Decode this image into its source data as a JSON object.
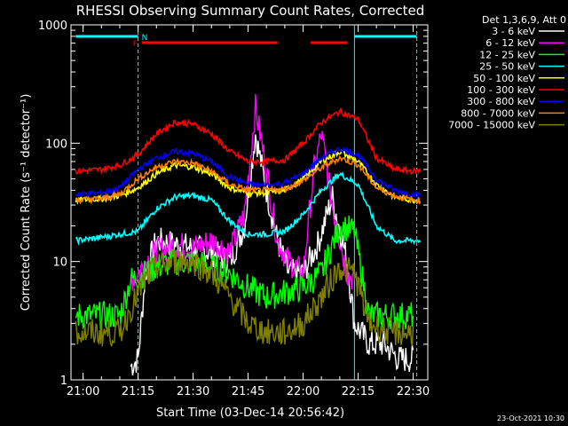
{
  "chart_data": {
    "type": "line",
    "title": "RHESSI Observing Summary Count Rates, Corrected",
    "xlabel": "Start Time (03-Dec-14 20:56:42)",
    "ylabel": "Corrected Count Rate (s⁻¹ detector⁻¹)",
    "yscale": "log",
    "ylim": [
      1,
      1000
    ],
    "xlim": [
      "20:56:42",
      "22:34:00"
    ],
    "x_ticks": [
      "21:00",
      "21:15",
      "21:30",
      "21:45",
      "22:00",
      "22:15",
      "22:30"
    ],
    "y_ticks": [
      "1",
      "10",
      "100",
      "1000"
    ],
    "detector_note": "Det 1,3,6,9, Att 0",
    "timestamp": "23-Oct-2021 10:30",
    "flags": [
      {
        "label": "N",
        "color": "#00ffff",
        "segments": [
          [
            "20:58",
            "21:15"
          ],
          [
            "22:14",
            "22:31"
          ]
        ]
      },
      {
        "label": "F",
        "color": "#ff0000",
        "segments": [
          [
            "21:16",
            "21:53"
          ],
          [
            "22:02",
            "22:12"
          ]
        ]
      }
    ],
    "vlines_cyan": [
      "21:15",
      "22:14",
      "22:31"
    ],
    "series": [
      {
        "name": "3 - 6 keV",
        "color": "#ffffff",
        "x": [
          "21:13",
          "21:15",
          "21:17",
          "21:20",
          "21:25",
          "21:30",
          "21:35",
          "21:40",
          "21:44",
          "21:47",
          "21:50",
          "21:53",
          "21:56",
          "22:00",
          "22:04",
          "22:08",
          "22:12",
          "22:14",
          "22:18",
          "22:22",
          "22:26",
          "22:30"
        ],
        "y": [
          1.3,
          1.5,
          8,
          15,
          14,
          13,
          12,
          10,
          20,
          120,
          40,
          15,
          8,
          8,
          14,
          35,
          10,
          3,
          2,
          2,
          1.5,
          1.5
        ]
      },
      {
        "name": "6 - 12 keV",
        "color": "#ff00ff",
        "x": [
          "21:13",
          "21:15",
          "21:17",
          "21:20",
          "21:25",
          "21:30",
          "21:35",
          "21:40",
          "21:44",
          "21:47",
          "21:50",
          "21:53",
          "21:56",
          "22:00",
          "22:03",
          "22:05",
          "22:08",
          "22:12",
          "22:14"
        ],
        "y": [
          7,
          8,
          10,
          12,
          14,
          13,
          15,
          12,
          25,
          200,
          60,
          15,
          10,
          8,
          60,
          120,
          30,
          8,
          7
        ]
      },
      {
        "name": "12 - 25 keV",
        "color": "#00ff00",
        "x": [
          "20:58",
          "21:05",
          "21:10",
          "21:13",
          "21:17",
          "21:20",
          "21:25",
          "21:30",
          "21:35",
          "21:40",
          "21:45",
          "21:50",
          "21:55",
          "22:00",
          "22:05",
          "22:10",
          "22:14",
          "22:18",
          "22:24",
          "22:30"
        ],
        "y": [
          3.5,
          3.5,
          3.5,
          7,
          8,
          9,
          10,
          10,
          9,
          8,
          6,
          5,
          5.5,
          6,
          8,
          20,
          18,
          3.5,
          3.5,
          3.5
        ]
      },
      {
        "name": "25 - 50 keV",
        "color": "#00ffff",
        "x": [
          "20:58",
          "21:05",
          "21:10",
          "21:15",
          "21:20",
          "21:25",
          "21:30",
          "21:35",
          "21:40",
          "21:45",
          "21:50",
          "21:55",
          "22:00",
          "22:05",
          "22:10",
          "22:15",
          "22:20",
          "22:25",
          "22:30",
          "22:32"
        ],
        "y": [
          15,
          16,
          17,
          18,
          28,
          35,
          36,
          33,
          22,
          17,
          17,
          18,
          25,
          40,
          55,
          45,
          20,
          15,
          15,
          15
        ]
      },
      {
        "name": "50 - 100 keV",
        "color": "#ffff00",
        "x": [
          "20:58",
          "21:05",
          "21:10",
          "21:15",
          "21:20",
          "21:25",
          "21:30",
          "21:35",
          "21:40",
          "21:45",
          "21:50",
          "21:55",
          "22:00",
          "22:05",
          "22:10",
          "22:15",
          "22:20",
          "22:25",
          "22:30",
          "22:32"
        ],
        "y": [
          33,
          34,
          36,
          42,
          55,
          65,
          63,
          55,
          42,
          38,
          38,
          40,
          50,
          70,
          85,
          70,
          45,
          35,
          33,
          33
        ]
      },
      {
        "name": "100 - 300 keV",
        "color": "#ff0000",
        "x": [
          "20:58",
          "21:05",
          "21:10",
          "21:15",
          "21:20",
          "21:25",
          "21:30",
          "21:35",
          "21:40",
          "21:45",
          "21:50",
          "21:55",
          "22:00",
          "22:05",
          "22:10",
          "22:15",
          "22:20",
          "22:25",
          "22:30",
          "22:32"
        ],
        "y": [
          58,
          60,
          65,
          80,
          120,
          150,
          145,
          120,
          85,
          70,
          70,
          72,
          100,
          150,
          185,
          160,
          75,
          60,
          58,
          58
        ]
      },
      {
        "name": "300 - 800 keV",
        "color": "#0000ff",
        "x": [
          "20:58",
          "21:05",
          "21:10",
          "21:15",
          "21:20",
          "21:25",
          "21:30",
          "21:35",
          "21:40",
          "21:45",
          "21:50",
          "21:55",
          "22:00",
          "22:05",
          "22:10",
          "22:15",
          "22:20",
          "22:25",
          "22:30",
          "22:32"
        ],
        "y": [
          37,
          38,
          42,
          60,
          75,
          85,
          82,
          70,
          52,
          45,
          44,
          46,
          55,
          75,
          90,
          80,
          50,
          40,
          37,
          37
        ]
      },
      {
        "name": "800 - 7000 keV",
        "color": "#ff8000",
        "x": [
          "20:58",
          "21:05",
          "21:10",
          "21:15",
          "21:20",
          "21:25",
          "21:30",
          "21:35",
          "21:40",
          "21:45",
          "21:50",
          "21:55",
          "22:00",
          "22:05",
          "22:10",
          "22:15",
          "22:20",
          "22:25",
          "22:30",
          "22:32"
        ],
        "y": [
          33,
          34,
          37,
          50,
          63,
          70,
          68,
          58,
          45,
          40,
          40,
          41,
          48,
          62,
          75,
          66,
          42,
          36,
          33,
          33
        ]
      },
      {
        "name": "7000 - 15000 keV",
        "color": "#808000",
        "x": [
          "20:58",
          "21:05",
          "21:10",
          "21:13",
          "21:17",
          "21:20",
          "21:25",
          "21:30",
          "21:35",
          "21:40",
          "21:45",
          "21:50",
          "21:55",
          "22:00",
          "22:05",
          "22:10",
          "22:14",
          "22:18",
          "22:24",
          "22:30"
        ],
        "y": [
          2.5,
          2.5,
          2.5,
          4,
          7,
          9,
          10,
          10,
          8,
          5,
          3,
          2.5,
          2.5,
          3,
          5,
          9,
          8,
          3,
          2.5,
          2.5
        ]
      }
    ]
  }
}
